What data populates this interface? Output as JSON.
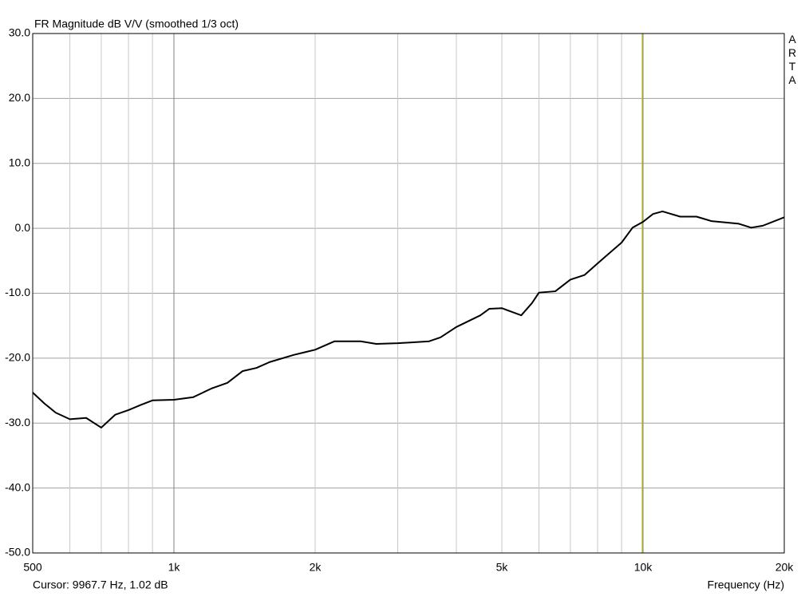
{
  "chart_data": {
    "type": "line",
    "title": "FR Magnitude dB V/V (smoothed 1/3 oct)",
    "x_label": "Frequency (Hz)",
    "logo": "ARTA",
    "cursor_label": "Cursor: 9967.7 Hz, 1.02 dB",
    "cursor_x": 9967.7,
    "cursor_color": "#b4b400",
    "log_x": true,
    "grid": true,
    "xlim": [
      500,
      20000
    ],
    "ylim": [
      -50,
      30
    ],
    "xticks": [
      500,
      {
        "value": 1000,
        "label": "1k"
      },
      {
        "value": 2000,
        "label": "2k"
      },
      {
        "value": 5000,
        "label": "5k"
      },
      {
        "value": 10000,
        "label": "10k"
      },
      {
        "value": 20000,
        "label": "20k"
      }
    ],
    "x_minor_ticks": [
      600,
      700,
      800,
      900,
      3000,
      4000,
      6000,
      7000,
      8000,
      9000
    ],
    "yticks": [
      {
        "value": 30,
        "label": "30.0"
      },
      {
        "value": 20,
        "label": "20.0"
      },
      {
        "value": 10,
        "label": "10.0"
      },
      {
        "value": 0,
        "label": "0.0"
      },
      {
        "value": -10,
        "label": "-10.0"
      },
      {
        "value": -20,
        "label": "-20.0"
      },
      {
        "value": -30,
        "label": "-30.0"
      },
      {
        "value": -40,
        "label": "-40.0"
      },
      {
        "value": -50,
        "label": "-50.0"
      }
    ],
    "x": [
      500,
      530,
      560,
      600,
      650,
      700,
      750,
      800,
      850,
      900,
      1000,
      1100,
      1200,
      1300,
      1400,
      1500,
      1600,
      1800,
      2000,
      2200,
      2500,
      2700,
      3000,
      3500,
      3700,
      4000,
      4500,
      4700,
      5000,
      5500,
      5800,
      6000,
      6500,
      7000,
      7500,
      8000,
      9000,
      9500,
      10000,
      10500,
      11000,
      12000,
      13000,
      14000,
      16000,
      17000,
      18000,
      20000
    ],
    "series": [
      {
        "color": "#000000",
        "values": [
          -25.3,
          -27,
          -28.4,
          -29.4,
          -29.2,
          -30.7,
          -28.7,
          -28.0,
          -27.2,
          -26.5,
          -26.4,
          -26.0,
          -24.7,
          -23.8,
          -22.0,
          -21.5,
          -20.6,
          -19.5,
          -18.7,
          -17.4,
          -17.4,
          -17.8,
          -17.7,
          -17.4,
          -16.8,
          -15.2,
          -13.4,
          -12.4,
          -12.3,
          -13.4,
          -11.5,
          -9.9,
          -9.7,
          -7.9,
          -7.2,
          -5.4,
          -2.2,
          0.1,
          1.0,
          2.2,
          2.6,
          1.8,
          1.8,
          1.1,
          0.7,
          0.1,
          0.4,
          1.7
        ]
      }
    ]
  }
}
